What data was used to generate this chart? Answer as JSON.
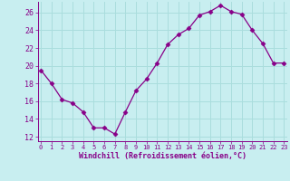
{
  "x": [
    0,
    1,
    2,
    3,
    4,
    5,
    6,
    7,
    8,
    9,
    10,
    11,
    12,
    13,
    14,
    15,
    16,
    17,
    18,
    19,
    20,
    21,
    22,
    23
  ],
  "y": [
    19.5,
    18.0,
    16.2,
    15.8,
    14.8,
    13.0,
    13.0,
    12.3,
    14.8,
    17.2,
    18.5,
    20.3,
    22.4,
    23.5,
    24.2,
    25.7,
    26.1,
    26.8,
    26.1,
    25.8,
    24.0,
    22.5,
    20.3,
    20.3
  ],
  "xlim": [
    -0.3,
    23.3
  ],
  "ylim": [
    11.5,
    27.2
  ],
  "yticks": [
    12,
    14,
    16,
    18,
    20,
    22,
    24,
    26
  ],
  "xticks": [
    0,
    1,
    2,
    3,
    4,
    5,
    6,
    7,
    8,
    9,
    10,
    11,
    12,
    13,
    14,
    15,
    16,
    17,
    18,
    19,
    20,
    21,
    22,
    23
  ],
  "xlabel": "Windchill (Refroidissement éolien,°C)",
  "line_color": "#880088",
  "marker": "D",
  "marker_size": 2.5,
  "bg_color": "#c8eef0",
  "grid_color": "#aadddd",
  "tick_color": "#880088",
  "label_color": "#880088"
}
